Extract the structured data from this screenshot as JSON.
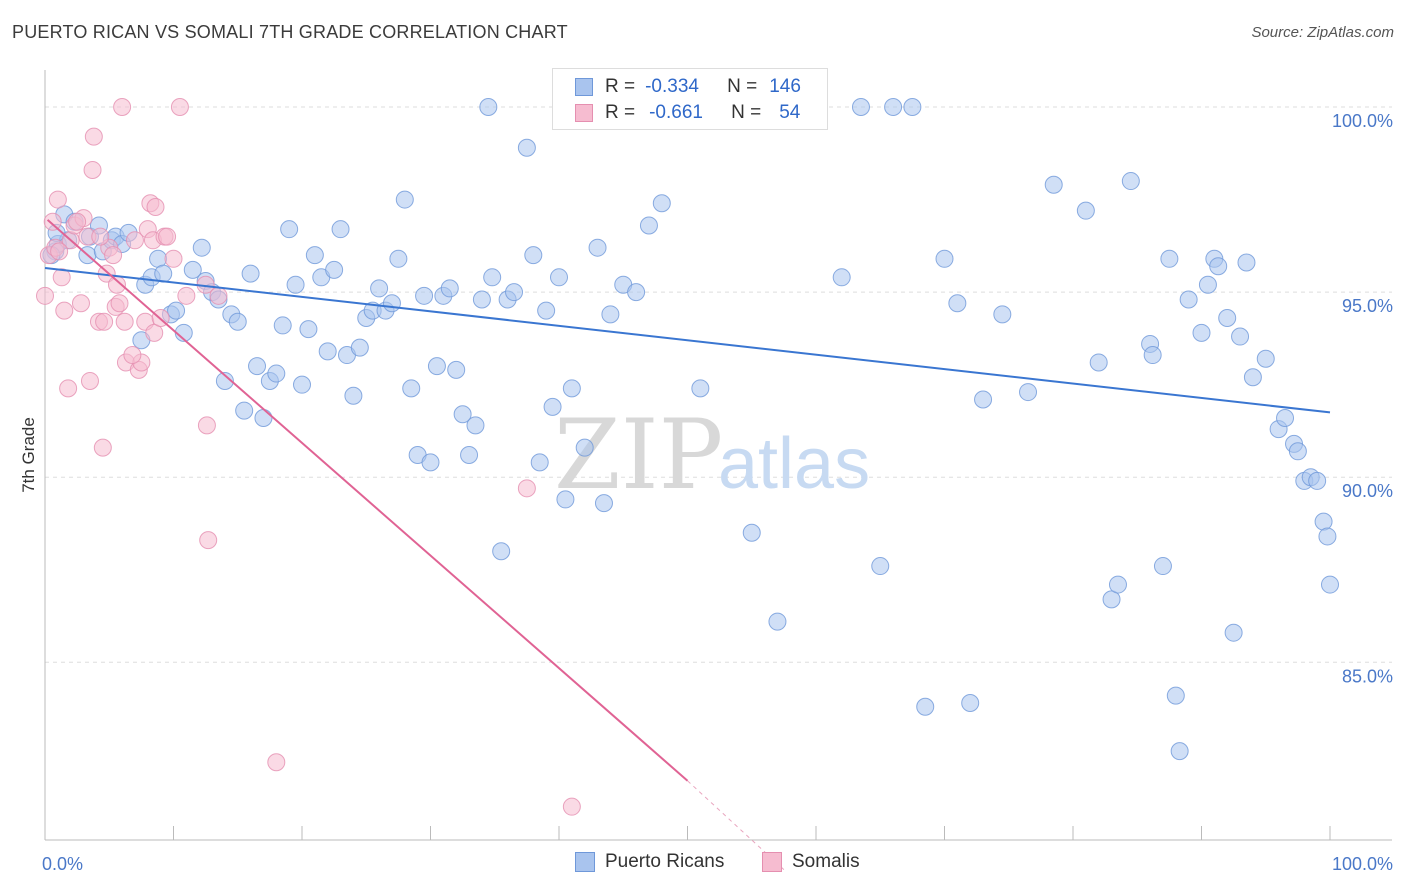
{
  "header": {
    "title": "PUERTO RICAN VS SOMALI 7TH GRADE CORRELATION CHART",
    "source": "Source: ZipAtlas.com"
  },
  "watermark": {
    "zip": "ZIP",
    "atlas": "atlas"
  },
  "legend": {
    "rows": [
      {
        "r_label": "R =",
        "r_value": "-0.334",
        "n_label": "N =",
        "n_value": "146",
        "color": "#a9c4ee",
        "border": "#6f98d9"
      },
      {
        "r_label": "R =",
        "r_value": "-0.661",
        "n_label": "N =",
        "n_value": "54",
        "color": "#f6bcd0",
        "border": "#e58fb0"
      }
    ]
  },
  "bottom_legend": [
    {
      "label": "Puerto Ricans",
      "color": "#a9c4ee",
      "border": "#6f98d9"
    },
    {
      "label": "Somalis",
      "color": "#f6bcd0",
      "border": "#e58fb0"
    }
  ],
  "chart_data": {
    "type": "scatter",
    "title": "PUERTO RICAN VS SOMALI 7TH GRADE CORRELATION CHART",
    "xlabel": "",
    "ylabel": "7th Grade",
    "xlim": [
      0,
      100
    ],
    "ylim": [
      80.2,
      101.0
    ],
    "x_tick_labels": [
      "0.0%",
      "100.0%"
    ],
    "y_ticks": [
      85,
      90,
      95,
      100
    ],
    "y_tick_labels": [
      "85.0%",
      "90.0%",
      "95.0%",
      "100.0%"
    ],
    "grid": true,
    "legend_position": "top-center",
    "colors": {
      "puerto_ricans": "#3a76d1",
      "somalis": "#e06394"
    },
    "series": [
      {
        "name": "Puerto Ricans",
        "trend": {
          "x": [
            0,
            100
          ],
          "y": [
            95.65,
            91.75
          ]
        },
        "points": [
          [
            0.8,
            96.1
          ],
          [
            1.0,
            96.3
          ],
          [
            1.5,
            97.1
          ],
          [
            1.8,
            96.4
          ],
          [
            2.3,
            96.9
          ],
          [
            3.3,
            96.0
          ],
          [
            3.5,
            96.5
          ],
          [
            4.2,
            96.8
          ],
          [
            4.5,
            96.1
          ],
          [
            5.2,
            96.4
          ],
          [
            5.5,
            96.5
          ],
          [
            6.0,
            96.3
          ],
          [
            6.5,
            96.6
          ],
          [
            7.5,
            93.7
          ],
          [
            7.8,
            95.2
          ],
          [
            8.3,
            95.4
          ],
          [
            8.8,
            95.9
          ],
          [
            9.2,
            95.5
          ],
          [
            9.8,
            94.4
          ],
          [
            10.2,
            94.5
          ],
          [
            10.8,
            93.9
          ],
          [
            11.5,
            95.6
          ],
          [
            12.2,
            96.2
          ],
          [
            12.5,
            95.3
          ],
          [
            13.0,
            95.0
          ],
          [
            13.5,
            94.8
          ],
          [
            14.0,
            92.6
          ],
          [
            14.5,
            94.4
          ],
          [
            15.0,
            94.2
          ],
          [
            15.5,
            91.8
          ],
          [
            16.0,
            95.5
          ],
          [
            16.5,
            93.0
          ],
          [
            17.0,
            91.6
          ],
          [
            17.5,
            92.6
          ],
          [
            18.0,
            92.8
          ],
          [
            18.5,
            94.1
          ],
          [
            19.0,
            96.7
          ],
          [
            19.5,
            95.2
          ],
          [
            20.0,
            92.5
          ],
          [
            20.5,
            94.0
          ],
          [
            21.0,
            96.0
          ],
          [
            21.5,
            95.4
          ],
          [
            22.0,
            93.4
          ],
          [
            22.5,
            95.6
          ],
          [
            23.0,
            96.7
          ],
          [
            23.5,
            93.3
          ],
          [
            24.0,
            92.2
          ],
          [
            24.5,
            93.5
          ],
          [
            25.0,
            94.3
          ],
          [
            25.5,
            94.5
          ],
          [
            26.0,
            95.1
          ],
          [
            26.5,
            94.5
          ],
          [
            27.0,
            94.7
          ],
          [
            27.5,
            95.9
          ],
          [
            28.0,
            97.5
          ],
          [
            28.5,
            92.4
          ],
          [
            29.0,
            90.6
          ],
          [
            29.5,
            94.9
          ],
          [
            30.0,
            90.4
          ],
          [
            30.5,
            93.0
          ],
          [
            31.0,
            94.9
          ],
          [
            31.5,
            95.1
          ],
          [
            32.0,
            92.9
          ],
          [
            32.5,
            91.7
          ],
          [
            33.0,
            90.6
          ],
          [
            33.5,
            91.4
          ],
          [
            34.0,
            94.8
          ],
          [
            34.5,
            100.0
          ],
          [
            34.8,
            95.4
          ],
          [
            35.5,
            88.0
          ],
          [
            36.0,
            94.8
          ],
          [
            36.5,
            95.0
          ],
          [
            37.5,
            98.9
          ],
          [
            38.0,
            96.0
          ],
          [
            38.5,
            90.4
          ],
          [
            39.0,
            94.5
          ],
          [
            39.5,
            91.9
          ],
          [
            40.0,
            95.4
          ],
          [
            40.5,
            89.4
          ],
          [
            41.0,
            92.4
          ],
          [
            42.0,
            90.8
          ],
          [
            43.0,
            96.2
          ],
          [
            43.5,
            89.3
          ],
          [
            44.0,
            94.4
          ],
          [
            45.0,
            95.2
          ],
          [
            46.0,
            95.0
          ],
          [
            47.0,
            96.8
          ],
          [
            48.0,
            97.4
          ],
          [
            49.0,
            100.0
          ],
          [
            51.0,
            92.4
          ],
          [
            53.0,
            100.0
          ],
          [
            55.0,
            88.5
          ],
          [
            57.0,
            86.1
          ],
          [
            60.0,
            100.0
          ],
          [
            62.0,
            95.4
          ],
          [
            63.5,
            100.0
          ],
          [
            65.0,
            87.6
          ],
          [
            66.0,
            100.0
          ],
          [
            67.5,
            100.0
          ],
          [
            68.5,
            83.8
          ],
          [
            70.0,
            95.9
          ],
          [
            71.0,
            94.7
          ],
          [
            72.0,
            83.9
          ],
          [
            73.0,
            92.1
          ],
          [
            74.5,
            94.4
          ],
          [
            76.5,
            92.3
          ],
          [
            78.5,
            97.9
          ],
          [
            81.0,
            97.2
          ],
          [
            82.0,
            93.1
          ],
          [
            83.0,
            86.7
          ],
          [
            83.5,
            87.1
          ],
          [
            84.5,
            98.0
          ],
          [
            86.0,
            93.6
          ],
          [
            86.2,
            93.3
          ],
          [
            87.0,
            87.6
          ],
          [
            87.5,
            95.9
          ],
          [
            88.0,
            84.1
          ],
          [
            88.3,
            82.6
          ],
          [
            89.0,
            94.8
          ],
          [
            90.0,
            93.9
          ],
          [
            90.5,
            95.2
          ],
          [
            91.0,
            95.9
          ],
          [
            91.3,
            95.7
          ],
          [
            92.0,
            94.3
          ],
          [
            92.5,
            85.8
          ],
          [
            93.0,
            93.8
          ],
          [
            93.5,
            95.8
          ],
          [
            94.0,
            92.7
          ],
          [
            95.0,
            93.2
          ],
          [
            96.0,
            91.3
          ],
          [
            96.5,
            91.6
          ],
          [
            97.2,
            90.9
          ],
          [
            97.5,
            90.7
          ],
          [
            98.0,
            89.9
          ],
          [
            98.5,
            90.0
          ],
          [
            99.0,
            89.9
          ],
          [
            99.5,
            88.8
          ],
          [
            99.8,
            88.4
          ],
          [
            100.0,
            87.1
          ],
          [
            0.5,
            96.0
          ],
          [
            0.9,
            96.6
          ]
        ]
      },
      {
        "name": "Somalis",
        "trend": {
          "x": [
            0.2,
            50.0
          ],
          "y": [
            96.95,
            81.8
          ]
        },
        "trend_dash": {
          "x": [
            50.0,
            57.5
          ],
          "y": [
            81.8,
            79.4
          ]
        },
        "points": [
          [
            0.0,
            94.9
          ],
          [
            0.3,
            96.0
          ],
          [
            0.8,
            96.2
          ],
          [
            1.0,
            97.5
          ],
          [
            1.3,
            95.4
          ],
          [
            1.5,
            94.5
          ],
          [
            1.8,
            92.4
          ],
          [
            2.0,
            96.4
          ],
          [
            2.3,
            96.8
          ],
          [
            2.8,
            94.7
          ],
          [
            3.0,
            97.0
          ],
          [
            3.3,
            96.5
          ],
          [
            3.5,
            92.6
          ],
          [
            3.7,
            98.3
          ],
          [
            3.8,
            99.2
          ],
          [
            4.2,
            94.2
          ],
          [
            4.5,
            90.8
          ],
          [
            4.6,
            94.2
          ],
          [
            4.8,
            95.5
          ],
          [
            5.0,
            96.2
          ],
          [
            5.3,
            96.0
          ],
          [
            5.5,
            94.6
          ],
          [
            5.6,
            95.2
          ],
          [
            5.8,
            94.7
          ],
          [
            6.0,
            100.0
          ],
          [
            6.2,
            94.2
          ],
          [
            6.3,
            93.1
          ],
          [
            7.0,
            96.4
          ],
          [
            7.3,
            92.9
          ],
          [
            7.5,
            93.1
          ],
          [
            7.8,
            94.2
          ],
          [
            8.0,
            96.7
          ],
          [
            8.2,
            97.4
          ],
          [
            8.4,
            96.4
          ],
          [
            8.5,
            93.9
          ],
          [
            8.6,
            97.3
          ],
          [
            9.0,
            94.3
          ],
          [
            9.3,
            96.5
          ],
          [
            9.5,
            96.5
          ],
          [
            10.0,
            95.9
          ],
          [
            10.5,
            100.0
          ],
          [
            12.5,
            95.2
          ],
          [
            12.6,
            91.4
          ],
          [
            12.7,
            88.3
          ],
          [
            13.5,
            94.9
          ],
          [
            18.0,
            82.3
          ],
          [
            37.5,
            89.7
          ],
          [
            41.0,
            81.1
          ],
          [
            0.6,
            96.9
          ],
          [
            1.1,
            96.1
          ],
          [
            2.5,
            96.9
          ],
          [
            4.3,
            96.5
          ],
          [
            6.8,
            93.3
          ],
          [
            11.0,
            94.9
          ]
        ]
      }
    ]
  }
}
